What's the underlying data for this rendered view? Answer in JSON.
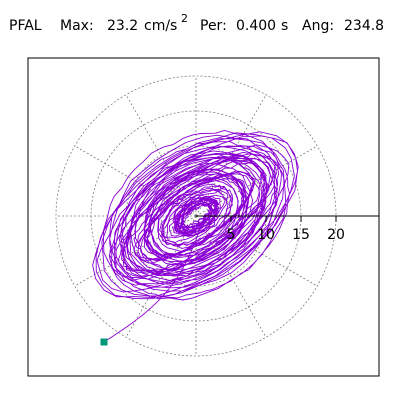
{
  "header": {
    "station": "PFAL",
    "max_label": "Max:",
    "max_value": "23.2",
    "max_unit": "cm/s",
    "max_unit_exp": "2",
    "per_label": "Per:",
    "per_value": "0.400",
    "per_unit": "s",
    "ang_label": "Ang:",
    "ang_value": "234.8"
  },
  "chart_data": {
    "type": "scatter",
    "title": "PFAL  Max: 23.2 cm/s2  Per: 0.400 s  Ang: 234.8",
    "radial_ticks": [
      5,
      10,
      15,
      20
    ],
    "radial_tick_labels": [
      "5",
      "10",
      "15",
      "20"
    ],
    "max_radius": 23.2,
    "grid": true,
    "colors": {
      "trace": "#8a00d4",
      "marker": "#009977",
      "grid": "#7f7f7f",
      "axis": "#000000"
    }
  }
}
